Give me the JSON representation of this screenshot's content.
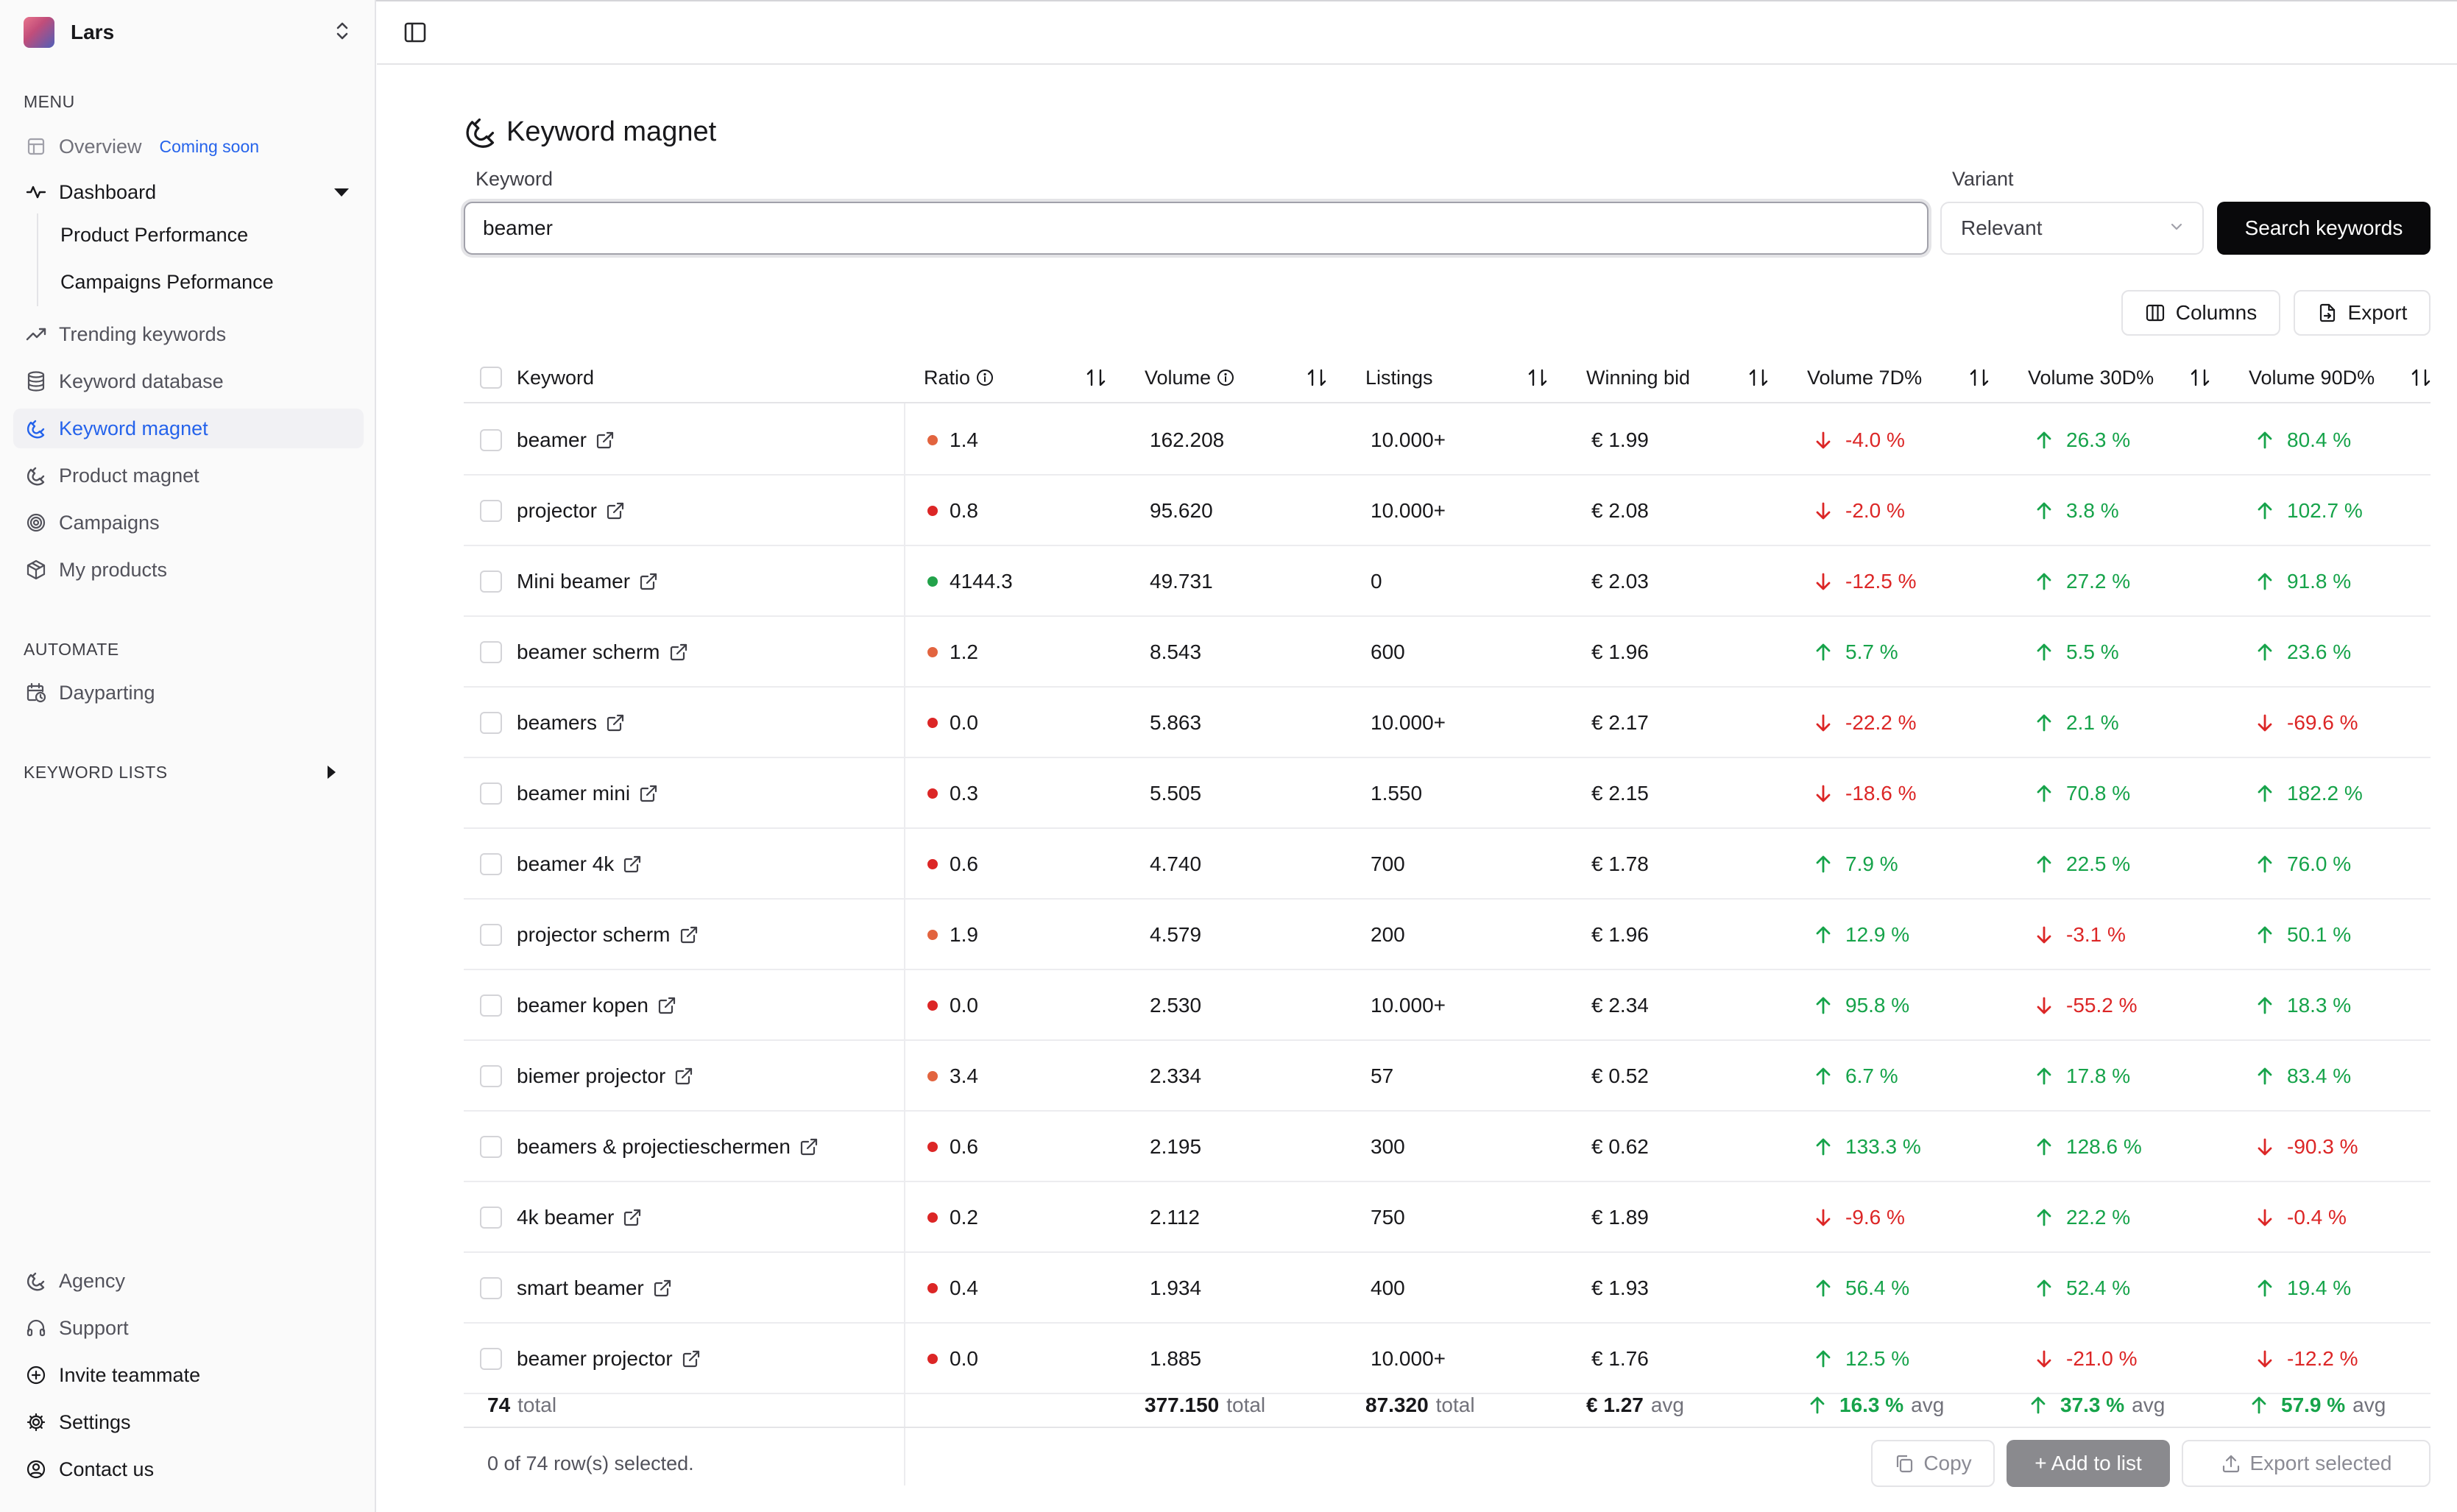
{
  "team": {
    "name": "Lars"
  },
  "sidebar": {
    "menu_label": "MENU",
    "overview": {
      "label": "Overview",
      "badge": "Coming soon"
    },
    "dashboard": {
      "label": "Dashboard"
    },
    "dashboard_children": [
      "Product Performance",
      "Campaigns Peformance"
    ],
    "items": [
      {
        "label": "Trending keywords",
        "icon": "trending-up-icon"
      },
      {
        "label": "Keyword database",
        "icon": "database-icon"
      },
      {
        "label": "Keyword magnet",
        "icon": "magnet-icon",
        "active": true
      },
      {
        "label": "Product magnet",
        "icon": "magnet-icon"
      },
      {
        "label": "Campaigns",
        "icon": "target-icon"
      },
      {
        "label": "My products",
        "icon": "package-icon"
      }
    ],
    "automate_label": "AUTOMATE",
    "dayparting": {
      "label": "Dayparting"
    },
    "keyword_lists_label": "KEYWORD LISTS",
    "bottom_items": [
      {
        "label": "Agency"
      },
      {
        "label": "Support"
      },
      {
        "label": "Invite teammate"
      },
      {
        "label": "Settings"
      },
      {
        "label": "Contact us"
      }
    ]
  },
  "page": {
    "title": "Keyword magnet",
    "keyword_label": "Keyword",
    "keyword_value": "beamer",
    "variant_label": "Variant",
    "variant_value": "Relevant",
    "search_button": "Search keywords",
    "columns_button": "Columns",
    "export_button": "Export"
  },
  "table": {
    "headers": {
      "keyword": "Keyword",
      "ratio": "Ratio",
      "volume": "Volume",
      "listings": "Listings",
      "bid": "Winning bid",
      "v7": "Volume 7D%",
      "v30": "Volume 30D%",
      "v90": "Volume 90D%"
    },
    "rows": [
      {
        "keyword": "beamer",
        "ratio": "1.4",
        "ratio_color": "#e2643f",
        "volume": "162.208",
        "listings": "10.000+",
        "bid": "€ 1.99",
        "v7": "-4.0 %",
        "v30": "26.3 %",
        "v90": "80.4 %"
      },
      {
        "keyword": "projector",
        "ratio": "0.8",
        "ratio_color": "#dc2626",
        "volume": "95.620",
        "listings": "10.000+",
        "bid": "€ 2.08",
        "v7": "-2.0 %",
        "v30": "3.8 %",
        "v90": "102.7 %"
      },
      {
        "keyword": "Mini beamer",
        "ratio": "4144.3",
        "ratio_color": "#22a24a",
        "volume": "49.731",
        "listings": "0",
        "bid": "€ 2.03",
        "v7": "-12.5 %",
        "v30": "27.2 %",
        "v90": "91.8 %"
      },
      {
        "keyword": "beamer scherm",
        "ratio": "1.2",
        "ratio_color": "#e2643f",
        "volume": "8.543",
        "listings": "600",
        "bid": "€ 1.96",
        "v7": "5.7 %",
        "v30": "5.5 %",
        "v90": "23.6 %"
      },
      {
        "keyword": "beamers",
        "ratio": "0.0",
        "ratio_color": "#dc2626",
        "volume": "5.863",
        "listings": "10.000+",
        "bid": "€ 2.17",
        "v7": "-22.2 %",
        "v30": "2.1 %",
        "v90": "-69.6 %"
      },
      {
        "keyword": "beamer mini",
        "ratio": "0.3",
        "ratio_color": "#dc2626",
        "volume": "5.505",
        "listings": "1.550",
        "bid": "€ 2.15",
        "v7": "-18.6 %",
        "v30": "70.8 %",
        "v90": "182.2 %"
      },
      {
        "keyword": "beamer 4k",
        "ratio": "0.6",
        "ratio_color": "#dc2626",
        "volume": "4.740",
        "listings": "700",
        "bid": "€ 1.78",
        "v7": "7.9 %",
        "v30": "22.5 %",
        "v90": "76.0 %"
      },
      {
        "keyword": "projector scherm",
        "ratio": "1.9",
        "ratio_color": "#e2643f",
        "volume": "4.579",
        "listings": "200",
        "bid": "€ 1.96",
        "v7": "12.9 %",
        "v30": "-3.1 %",
        "v90": "50.1 %"
      },
      {
        "keyword": "beamer kopen",
        "ratio": "0.0",
        "ratio_color": "#dc2626",
        "volume": "2.530",
        "listings": "10.000+",
        "bid": "€ 2.34",
        "v7": "95.8 %",
        "v30": "-55.2 %",
        "v90": "18.3 %"
      },
      {
        "keyword": "biemer projector",
        "ratio": "3.4",
        "ratio_color": "#e2643f",
        "volume": "2.334",
        "listings": "57",
        "bid": "€ 0.52",
        "v7": "6.7 %",
        "v30": "17.8 %",
        "v90": "83.4 %"
      },
      {
        "keyword": "beamers & projectieschermen",
        "ratio": "0.6",
        "ratio_color": "#dc2626",
        "volume": "2.195",
        "listings": "300",
        "bid": "€ 0.62",
        "v7": "133.3 %",
        "v30": "128.6 %",
        "v90": "-90.3 %"
      },
      {
        "keyword": "4k beamer",
        "ratio": "0.2",
        "ratio_color": "#dc2626",
        "volume": "2.112",
        "listings": "750",
        "bid": "€ 1.89",
        "v7": "-9.6 %",
        "v30": "22.2 %",
        "v90": "-0.4 %"
      },
      {
        "keyword": "smart beamer",
        "ratio": "0.4",
        "ratio_color": "#dc2626",
        "volume": "1.934",
        "listings": "400",
        "bid": "€ 1.93",
        "v7": "56.4 %",
        "v30": "52.4 %",
        "v90": "19.4 %"
      },
      {
        "keyword": "beamer projector",
        "ratio": "0.0",
        "ratio_color": "#dc2626",
        "volume": "1.885",
        "listings": "10.000+",
        "bid": "€ 1.76",
        "v7": "12.5 %",
        "v30": "-21.0 %",
        "v90": "-12.2 %"
      }
    ],
    "totals": {
      "count": "74",
      "count_suffix": "total",
      "volume": "377.150",
      "volume_suffix": "total",
      "listings": "87.320",
      "listings_suffix": "total",
      "bid": "€ 1.27",
      "bid_suffix": "avg",
      "v7": "16.3 %",
      "v7_suffix": "avg",
      "v30": "37.3 %",
      "v30_suffix": "avg",
      "v90": "57.9 %",
      "v90_suffix": "avg"
    },
    "selection_text": "0 of 74 row(s) selected.",
    "copy_button": "Copy",
    "add_to_list_button": "+ Add to list",
    "export_selected_button": "Export selected"
  },
  "colors": {
    "accent": "#2563eb",
    "up": "#16a34a",
    "down": "#dc2626",
    "primary_button": "#09090b"
  }
}
